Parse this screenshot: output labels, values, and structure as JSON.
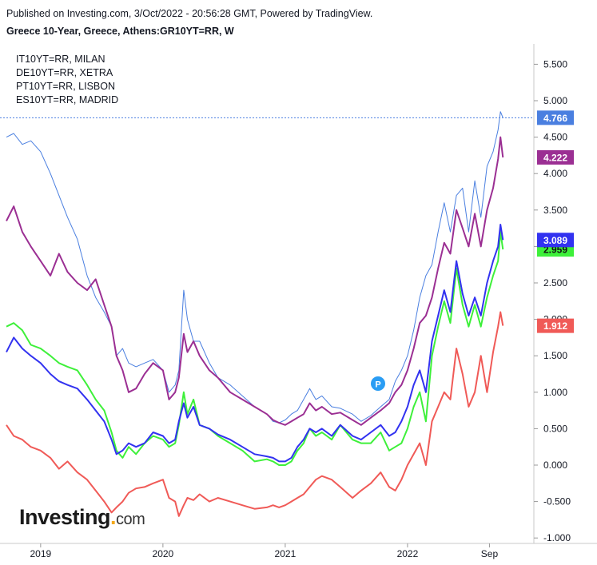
{
  "header": {
    "published": "Published on Investing.com, 3/Oct/2022 - 20:56:28 GMT, Powered by TradingView.",
    "title": "Greece 10-Year, Greece, Athens:GR10YT=RR, W"
  },
  "legend_items": [
    "IT10YT=RR, MILAN",
    "DE10YT=RR, XETRA",
    "PT10YT=RR, LISBON",
    "ES10YT=RR, MADRID"
  ],
  "logo": {
    "main": "Investing",
    "suffix": "com"
  },
  "marker": {
    "label": "P"
  },
  "chart_data": {
    "type": "line",
    "y_ticks": [
      "5.500",
      "5.000",
      "4.500",
      "4.000",
      "3.500",
      "3.000",
      "2.500",
      "2.000",
      "1.500",
      "1.000",
      "0.500",
      "0.000",
      "-0.500",
      "-1.000"
    ],
    "x_ticks": [
      {
        "label": "2019",
        "t": 2019.0
      },
      {
        "label": "2020",
        "t": 2020.0
      },
      {
        "label": "2021",
        "t": 2021.0
      },
      {
        "label": "2022",
        "t": 2022.0
      },
      {
        "label": "Sep",
        "t": 2022.67
      }
    ],
    "ylim": [
      -1.0,
      5.8
    ],
    "xlim": [
      2018.72,
      2022.85
    ],
    "grid": false,
    "reference_line": {
      "value": 4.766,
      "style": "dotted"
    },
    "series": [
      {
        "name": "Greece 10-Year",
        "color": "#4a7fe0",
        "last_label": "4.766",
        "x": [
          2018.72,
          2018.78,
          2018.85,
          2018.92,
          2019.0,
          2019.08,
          2019.15,
          2019.22,
          2019.3,
          2019.38,
          2019.45,
          2019.52,
          2019.58,
          2019.62,
          2019.67,
          2019.72,
          2019.78,
          2019.85,
          2019.92,
          2020.0,
          2020.05,
          2020.1,
          2020.13,
          2020.17,
          2020.2,
          2020.25,
          2020.3,
          2020.38,
          2020.45,
          2020.55,
          2020.65,
          2020.75,
          2020.85,
          2020.9,
          2020.95,
          2021.0,
          2021.05,
          2021.1,
          2021.15,
          2021.2,
          2021.25,
          2021.3,
          2021.38,
          2021.45,
          2021.55,
          2021.62,
          2021.7,
          2021.78,
          2021.85,
          2021.9,
          2021.95,
          2022.0,
          2022.05,
          2022.1,
          2022.15,
          2022.2,
          2022.25,
          2022.3,
          2022.35,
          2022.4,
          2022.45,
          2022.5,
          2022.55,
          2022.6,
          2022.65,
          2022.7,
          2022.74,
          2022.76,
          2022.78
        ],
        "values": [
          4.5,
          4.55,
          4.4,
          4.45,
          4.3,
          4.0,
          3.7,
          3.4,
          3.1,
          2.6,
          2.3,
          2.1,
          1.9,
          1.5,
          1.6,
          1.4,
          1.35,
          1.4,
          1.45,
          1.3,
          1.0,
          1.1,
          1.3,
          2.4,
          2.0,
          1.7,
          1.7,
          1.4,
          1.2,
          1.1,
          0.95,
          0.8,
          0.7,
          0.6,
          0.58,
          0.62,
          0.7,
          0.75,
          0.9,
          1.05,
          0.9,
          0.95,
          0.8,
          0.78,
          0.7,
          0.6,
          0.68,
          0.8,
          0.9,
          1.15,
          1.3,
          1.5,
          1.85,
          2.3,
          2.6,
          2.75,
          3.2,
          3.6,
          3.2,
          3.7,
          3.8,
          3.2,
          3.9,
          3.4,
          4.1,
          4.3,
          4.6,
          4.85,
          4.766
        ]
      },
      {
        "name": "IT10YT=RR, MILAN",
        "color": "#9b2f93",
        "last_label": "4.222",
        "x": [
          2018.72,
          2018.78,
          2018.85,
          2018.92,
          2019.0,
          2019.08,
          2019.15,
          2019.22,
          2019.3,
          2019.38,
          2019.45,
          2019.52,
          2019.58,
          2019.62,
          2019.67,
          2019.72,
          2019.78,
          2019.85,
          2019.92,
          2020.0,
          2020.05,
          2020.1,
          2020.13,
          2020.17,
          2020.2,
          2020.25,
          2020.3,
          2020.38,
          2020.45,
          2020.55,
          2020.65,
          2020.75,
          2020.85,
          2020.9,
          2020.95,
          2021.0,
          2021.05,
          2021.1,
          2021.15,
          2021.2,
          2021.25,
          2021.3,
          2021.38,
          2021.45,
          2021.55,
          2021.62,
          2021.7,
          2021.78,
          2021.85,
          2021.9,
          2021.95,
          2022.0,
          2022.05,
          2022.1,
          2022.15,
          2022.2,
          2022.25,
          2022.3,
          2022.35,
          2022.4,
          2022.45,
          2022.5,
          2022.55,
          2022.6,
          2022.65,
          2022.7,
          2022.74,
          2022.76,
          2022.78
        ],
        "values": [
          3.35,
          3.55,
          3.2,
          3.0,
          2.8,
          2.6,
          2.9,
          2.65,
          2.5,
          2.4,
          2.55,
          2.2,
          1.9,
          1.5,
          1.3,
          1.0,
          1.05,
          1.25,
          1.4,
          1.3,
          0.9,
          1.0,
          1.2,
          1.8,
          1.55,
          1.7,
          1.5,
          1.3,
          1.2,
          1.0,
          0.9,
          0.8,
          0.7,
          0.62,
          0.58,
          0.55,
          0.6,
          0.65,
          0.7,
          0.85,
          0.75,
          0.8,
          0.7,
          0.72,
          0.62,
          0.55,
          0.65,
          0.75,
          0.85,
          1.0,
          1.1,
          1.3,
          1.6,
          1.95,
          2.05,
          2.3,
          2.7,
          3.05,
          2.9,
          3.5,
          3.25,
          3.0,
          3.45,
          3.0,
          3.5,
          3.8,
          4.2,
          4.5,
          4.222
        ]
      },
      {
        "name": "DE10YT=RR, XETRA",
        "color": "#f05a57",
        "last_label": "1.912",
        "x": [
          2018.72,
          2018.78,
          2018.85,
          2018.92,
          2019.0,
          2019.08,
          2019.15,
          2019.22,
          2019.3,
          2019.38,
          2019.45,
          2019.52,
          2019.58,
          2019.62,
          2019.67,
          2019.72,
          2019.78,
          2019.85,
          2019.92,
          2020.0,
          2020.05,
          2020.1,
          2020.13,
          2020.17,
          2020.2,
          2020.25,
          2020.3,
          2020.38,
          2020.45,
          2020.55,
          2020.65,
          2020.75,
          2020.85,
          2020.9,
          2020.95,
          2021.0,
          2021.05,
          2021.1,
          2021.15,
          2021.2,
          2021.25,
          2021.3,
          2021.38,
          2021.45,
          2021.55,
          2021.62,
          2021.7,
          2021.78,
          2021.85,
          2021.9,
          2021.95,
          2022.0,
          2022.05,
          2022.1,
          2022.15,
          2022.2,
          2022.25,
          2022.3,
          2022.35,
          2022.4,
          2022.45,
          2022.5,
          2022.55,
          2022.6,
          2022.65,
          2022.7,
          2022.74,
          2022.76,
          2022.78
        ],
        "values": [
          0.55,
          0.4,
          0.35,
          0.25,
          0.2,
          0.1,
          -0.05,
          0.05,
          -0.1,
          -0.2,
          -0.35,
          -0.5,
          -0.65,
          -0.58,
          -0.5,
          -0.38,
          -0.32,
          -0.3,
          -0.25,
          -0.2,
          -0.45,
          -0.5,
          -0.7,
          -0.55,
          -0.45,
          -0.48,
          -0.4,
          -0.5,
          -0.45,
          -0.5,
          -0.55,
          -0.6,
          -0.58,
          -0.55,
          -0.58,
          -0.55,
          -0.5,
          -0.45,
          -0.4,
          -0.3,
          -0.2,
          -0.15,
          -0.2,
          -0.3,
          -0.45,
          -0.35,
          -0.25,
          -0.1,
          -0.3,
          -0.35,
          -0.2,
          0.0,
          0.15,
          0.3,
          0.0,
          0.6,
          0.8,
          1.0,
          0.9,
          1.6,
          1.25,
          0.8,
          1.0,
          1.5,
          1.0,
          1.55,
          1.9,
          2.1,
          1.912
        ]
      },
      {
        "name": "PT10YT=RR, LISBON",
        "color": "#3ef03a",
        "last_label": "2.959",
        "x": [
          2018.72,
          2018.78,
          2018.85,
          2018.92,
          2019.0,
          2019.08,
          2019.15,
          2019.22,
          2019.3,
          2019.38,
          2019.45,
          2019.52,
          2019.58,
          2019.62,
          2019.67,
          2019.72,
          2019.78,
          2019.85,
          2019.92,
          2020.0,
          2020.05,
          2020.1,
          2020.13,
          2020.17,
          2020.2,
          2020.25,
          2020.3,
          2020.38,
          2020.45,
          2020.55,
          2020.65,
          2020.75,
          2020.85,
          2020.9,
          2020.95,
          2021.0,
          2021.05,
          2021.1,
          2021.15,
          2021.2,
          2021.25,
          2021.3,
          2021.38,
          2021.45,
          2021.55,
          2021.62,
          2021.7,
          2021.78,
          2021.85,
          2021.9,
          2021.95,
          2022.0,
          2022.05,
          2022.1,
          2022.15,
          2022.2,
          2022.25,
          2022.3,
          2022.35,
          2022.4,
          2022.45,
          2022.5,
          2022.55,
          2022.6,
          2022.65,
          2022.7,
          2022.74,
          2022.76,
          2022.78
        ],
        "values": [
          1.9,
          1.95,
          1.85,
          1.65,
          1.6,
          1.5,
          1.4,
          1.35,
          1.3,
          1.1,
          0.9,
          0.75,
          0.45,
          0.2,
          0.1,
          0.25,
          0.15,
          0.3,
          0.4,
          0.35,
          0.25,
          0.3,
          0.55,
          1.0,
          0.7,
          0.9,
          0.55,
          0.5,
          0.4,
          0.3,
          0.2,
          0.05,
          0.08,
          0.05,
          0.0,
          0.0,
          0.05,
          0.2,
          0.3,
          0.5,
          0.4,
          0.45,
          0.35,
          0.55,
          0.35,
          0.3,
          0.3,
          0.45,
          0.2,
          0.25,
          0.3,
          0.5,
          0.8,
          1.0,
          0.6,
          1.5,
          1.9,
          2.25,
          1.95,
          2.7,
          2.2,
          1.9,
          2.2,
          1.9,
          2.3,
          2.6,
          2.8,
          3.2,
          2.959
        ]
      },
      {
        "name": "ES10YT=RR, MADRID",
        "color": "#3232f0",
        "last_label": "3.089",
        "x": [
          2018.72,
          2018.78,
          2018.85,
          2018.92,
          2019.0,
          2019.08,
          2019.15,
          2019.22,
          2019.3,
          2019.38,
          2019.45,
          2019.52,
          2019.58,
          2019.62,
          2019.67,
          2019.72,
          2019.78,
          2019.85,
          2019.92,
          2020.0,
          2020.05,
          2020.1,
          2020.13,
          2020.17,
          2020.2,
          2020.25,
          2020.3,
          2020.38,
          2020.45,
          2020.55,
          2020.65,
          2020.75,
          2020.85,
          2020.9,
          2020.95,
          2021.0,
          2021.05,
          2021.1,
          2021.15,
          2021.2,
          2021.25,
          2021.3,
          2021.38,
          2021.45,
          2021.55,
          2021.62,
          2021.7,
          2021.78,
          2021.85,
          2021.9,
          2021.95,
          2022.0,
          2022.05,
          2022.1,
          2022.15,
          2022.2,
          2022.25,
          2022.3,
          2022.35,
          2022.4,
          2022.45,
          2022.5,
          2022.55,
          2022.6,
          2022.65,
          2022.7,
          2022.74,
          2022.76,
          2022.78
        ],
        "values": [
          1.55,
          1.75,
          1.6,
          1.5,
          1.4,
          1.25,
          1.15,
          1.1,
          1.05,
          0.9,
          0.75,
          0.6,
          0.35,
          0.15,
          0.2,
          0.3,
          0.25,
          0.3,
          0.45,
          0.4,
          0.3,
          0.35,
          0.6,
          0.85,
          0.65,
          0.8,
          0.55,
          0.5,
          0.42,
          0.35,
          0.25,
          0.15,
          0.12,
          0.1,
          0.05,
          0.05,
          0.1,
          0.25,
          0.35,
          0.5,
          0.45,
          0.5,
          0.4,
          0.55,
          0.4,
          0.35,
          0.45,
          0.55,
          0.4,
          0.45,
          0.6,
          0.8,
          1.1,
          1.3,
          1.0,
          1.7,
          2.05,
          2.4,
          2.1,
          2.8,
          2.35,
          2.05,
          2.3,
          2.05,
          2.5,
          2.8,
          3.0,
          3.3,
          3.089
        ]
      }
    ]
  }
}
